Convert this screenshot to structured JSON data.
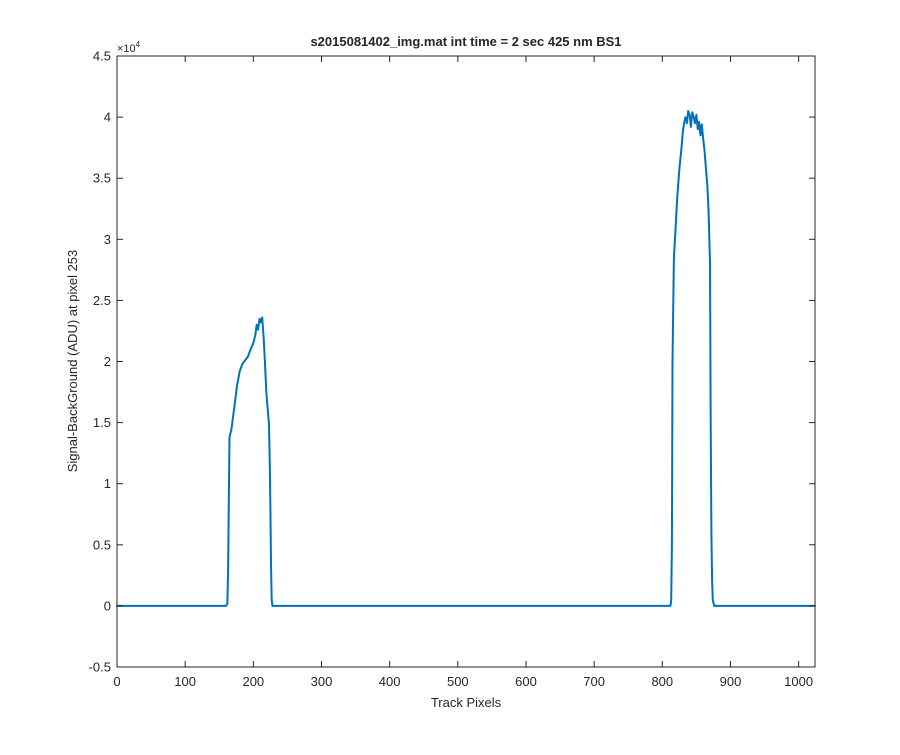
{
  "chart_data": {
    "type": "line",
    "title": "s2015081402_img.mat int time = 2 sec  425 nm BS1",
    "xlabel": "Track Pixels",
    "ylabel": "Signal-BackGround (ADU) at pixel 253",
    "y_exponent_label": "×10",
    "y_exponent_power": "4",
    "xlim": [
      0,
      1024
    ],
    "ylim": [
      -0.5,
      4.5
    ],
    "y_scale_factor": 10000,
    "x_ticks": [
      "0",
      "100",
      "200",
      "300",
      "400",
      "500",
      "600",
      "700",
      "800",
      "900",
      "1000"
    ],
    "y_ticks": [
      "-0.5",
      "0",
      "0.5",
      "1",
      "1.5",
      "2",
      "2.5",
      "3",
      "3.5",
      "4",
      "4.5"
    ],
    "grid": false,
    "line_color": "#0072bd",
    "series": [
      {
        "x": [
          0,
          160,
          162,
          163,
          165,
          168,
          172,
          176,
          180,
          184,
          188,
          192,
          196,
          200,
          203,
          205,
          207,
          209,
          211,
          213,
          215,
          217,
          219,
          221,
          223,
          224,
          225,
          226,
          227,
          228,
          230,
          235,
          300,
          400,
          500,
          600,
          700,
          800,
          812,
          813,
          814,
          815,
          817,
          819,
          822,
          825,
          828,
          830,
          832,
          834,
          836,
          838,
          840,
          842,
          844,
          846,
          848,
          850,
          852,
          854,
          856,
          858,
          860,
          862,
          864,
          866,
          868,
          870,
          871,
          872,
          873,
          874,
          876,
          880,
          900,
          1000,
          1024
        ],
        "y": [
          0.0,
          0.0,
          0.02,
          0.3,
          1.38,
          1.45,
          1.62,
          1.8,
          1.92,
          1.98,
          2.01,
          2.04,
          2.1,
          2.15,
          2.22,
          2.3,
          2.26,
          2.35,
          2.32,
          2.36,
          2.2,
          2.0,
          1.75,
          1.62,
          1.48,
          1.2,
          0.8,
          0.3,
          0.05,
          0.0,
          0.0,
          0.0,
          0.0,
          0.0,
          0.0,
          0.0,
          0.0,
          0.0,
          0.0,
          0.05,
          0.5,
          2.0,
          2.85,
          3.05,
          3.35,
          3.58,
          3.74,
          3.88,
          3.95,
          4.0,
          3.95,
          4.05,
          4.02,
          3.92,
          4.04,
          4.0,
          3.95,
          4.02,
          3.9,
          3.96,
          3.85,
          3.94,
          3.82,
          3.72,
          3.58,
          3.45,
          3.2,
          2.8,
          1.5,
          0.6,
          0.2,
          0.05,
          0.0,
          0.0,
          0.0,
          0.0,
          0.0
        ]
      }
    ]
  }
}
